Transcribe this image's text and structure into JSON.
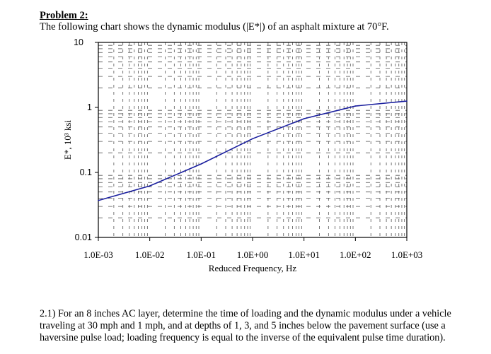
{
  "problem": {
    "heading": "Problem 2:",
    "intro": "The following chart shows the dynamic modulus (|E*|) of an asphalt mixture at 70°F.",
    "question": "2.1) For an 8 inches AC layer, determine the time of loading and the dynamic modulus under a vehicle traveling at 30 mph and 1 mph, and at depths of 1, 3, and 5 inches below the pavement surface (use a haversine pulse load; loading frequency is equal to the inverse of the equivalent pulse time duration)."
  },
  "chart_data": {
    "type": "line",
    "xlabel": "Reduced Frequency, Hz",
    "ylabel": "E*, 10³ ksi",
    "xscale": "log",
    "yscale": "log",
    "xlim": [
      0.001,
      1000
    ],
    "ylim": [
      0.01,
      10
    ],
    "x_tick_labels": [
      "1.0E-03",
      "1.0E-02",
      "1.0E-01",
      "1.0E+00",
      "1.0E+01",
      "1.0E+02",
      "1.0E+03"
    ],
    "y_tick_labels": [
      "10",
      "1",
      "0.1",
      "0.01"
    ],
    "grid": true,
    "series": [
      {
        "color": "#1a1f9e",
        "x": [
          0.001,
          0.01,
          0.1,
          1,
          10,
          100,
          1000
        ],
        "y": [
          0.037,
          0.062,
          0.135,
          0.33,
          0.67,
          1.05,
          1.25
        ]
      }
    ]
  }
}
